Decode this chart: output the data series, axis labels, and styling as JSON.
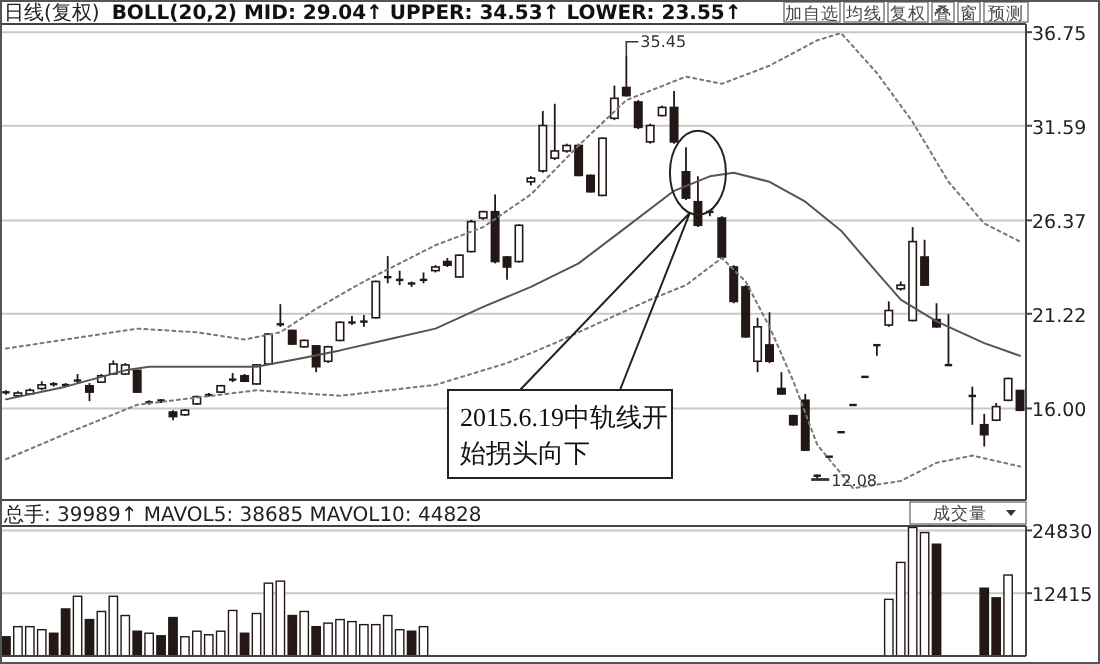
{
  "chart_data": [
    {
      "type": "candlestick",
      "title": "日线(复权)",
      "subtitle": "BOLL(20,2) MID: 29.04↑ UPPER: 34.53↑ LOWER: 23.55↑",
      "categories": [
        null,
        null,
        null,
        null,
        null,
        null,
        null,
        null,
        null,
        null,
        null,
        null,
        null,
        null,
        null,
        null,
        null,
        null,
        null,
        null,
        null,
        null,
        null,
        null,
        null,
        null,
        null,
        null,
        null,
        null,
        null,
        null,
        null,
        null,
        null,
        null,
        null,
        null,
        null,
        null,
        null,
        null,
        null,
        null,
        null,
        null,
        null,
        null,
        null,
        null,
        null,
        null,
        null,
        null,
        null,
        null,
        null,
        null,
        null,
        null,
        null,
        null,
        null,
        null,
        null,
        null,
        null,
        null,
        null,
        null,
        null,
        null,
        null,
        null,
        null,
        null,
        null,
        null,
        null,
        null,
        null,
        null,
        null,
        null,
        null,
        null
      ],
      "ohlc": [
        [
          16.85,
          17.0,
          16.75,
          16.9
        ],
        [
          16.7,
          16.95,
          16.65,
          16.85
        ],
        [
          16.8,
          17.1,
          16.75,
          17.0
        ],
        [
          17.1,
          17.5,
          17.0,
          17.3
        ],
        [
          17.35,
          17.45,
          17.2,
          17.25
        ],
        [
          17.3,
          17.4,
          17.2,
          17.3
        ],
        [
          17.45,
          17.9,
          17.35,
          17.55
        ],
        [
          17.25,
          17.4,
          16.4,
          16.9
        ],
        [
          17.45,
          17.9,
          17.4,
          17.8
        ],
        [
          17.9,
          18.65,
          17.85,
          18.45
        ],
        [
          17.9,
          18.5,
          17.85,
          18.4
        ],
        [
          18.1,
          18.15,
          16.85,
          16.9
        ],
        [
          16.3,
          16.45,
          16.2,
          16.35
        ],
        [
          16.4,
          16.5,
          16.3,
          16.45
        ],
        [
          15.8,
          15.9,
          15.35,
          15.55
        ],
        [
          15.65,
          15.95,
          15.6,
          15.9
        ],
        [
          16.25,
          16.7,
          16.2,
          16.65
        ],
        [
          16.7,
          16.85,
          16.65,
          16.75
        ],
        [
          16.9,
          17.3,
          16.85,
          17.25
        ],
        [
          17.55,
          17.95,
          17.45,
          17.6
        ],
        [
          17.8,
          17.9,
          17.45,
          17.5
        ],
        [
          17.35,
          18.45,
          17.3,
          18.4
        ],
        [
          18.45,
          20.15,
          18.4,
          20.1
        ],
        [
          20.6,
          21.75,
          20.5,
          20.65
        ],
        [
          20.3,
          20.35,
          19.5,
          19.55
        ],
        [
          19.4,
          19.8,
          19.35,
          19.75
        ],
        [
          19.45,
          19.5,
          18.0,
          18.3
        ],
        [
          18.6,
          19.45,
          18.5,
          19.4
        ],
        [
          19.75,
          20.8,
          19.7,
          20.75
        ],
        [
          20.7,
          21.1,
          20.6,
          20.75
        ],
        [
          20.75,
          21.15,
          20.5,
          20.8
        ],
        [
          21.0,
          23.05,
          20.95,
          23.0
        ],
        [
          23.2,
          24.4,
          22.9,
          23.25
        ],
        [
          23.05,
          23.6,
          22.8,
          23.1
        ],
        [
          22.9,
          23.0,
          22.7,
          22.8
        ],
        [
          23.0,
          23.5,
          22.9,
          23.1
        ],
        [
          23.6,
          23.9,
          23.5,
          23.8
        ],
        [
          24.1,
          24.3,
          23.8,
          23.9
        ],
        [
          23.25,
          24.5,
          23.2,
          24.45
        ],
        [
          24.65,
          26.4,
          24.6,
          26.3
        ],
        [
          26.5,
          26.9,
          26.4,
          26.85
        ],
        [
          26.85,
          27.8,
          24.0,
          24.1
        ],
        [
          24.35,
          24.4,
          23.1,
          23.8
        ],
        [
          24.1,
          26.15,
          24.05,
          26.1
        ],
        [
          28.5,
          28.8,
          28.3,
          28.7
        ],
        [
          29.1,
          32.4,
          29.0,
          31.6
        ],
        [
          29.8,
          32.8,
          29.7,
          30.2
        ],
        [
          30.2,
          30.6,
          30.1,
          30.5
        ],
        [
          30.5,
          30.6,
          28.8,
          28.85
        ],
        [
          28.85,
          28.9,
          27.9,
          27.95
        ],
        [
          27.75,
          30.95,
          27.7,
          30.9
        ],
        [
          32.0,
          33.8,
          31.9,
          33.1
        ],
        [
          33.7,
          35.45,
          33.2,
          33.25
        ],
        [
          32.9,
          33.0,
          31.4,
          31.5
        ],
        [
          30.7,
          31.7,
          30.6,
          31.6
        ],
        [
          32.15,
          32.7,
          32.1,
          32.6
        ],
        [
          32.6,
          33.5,
          30.6,
          30.7
        ],
        [
          29.05,
          30.4,
          27.5,
          27.6
        ],
        [
          27.4,
          28.8,
          26.0,
          26.1
        ],
        [
          26.8,
          26.9,
          26.6,
          26.85
        ],
        [
          26.5,
          26.6,
          24.3,
          24.35
        ],
        [
          23.8,
          23.9,
          21.8,
          21.9
        ],
        [
          22.7,
          22.8,
          19.9,
          19.95
        ],
        [
          18.6,
          21.0,
          18.0,
          20.5
        ],
        [
          19.5,
          21.3,
          18.5,
          18.6
        ],
        [
          17.1,
          18.0,
          16.75,
          16.8
        ],
        [
          15.6,
          15.65,
          15.05,
          15.1
        ],
        [
          16.45,
          16.8,
          13.65,
          13.7
        ],
        [
          12.3,
          12.35,
          12.08,
          12.3
        ],
        [
          13.35,
          13.35,
          13.35,
          13.35
        ],
        [
          14.7,
          14.7,
          14.7,
          14.7
        ],
        [
          16.2,
          16.2,
          16.2,
          16.2
        ],
        [
          17.75,
          17.75,
          17.75,
          17.75
        ],
        [
          19.5,
          19.5,
          18.9,
          19.5
        ],
        [
          20.6,
          21.9,
          20.5,
          21.4
        ],
        [
          22.6,
          23.0,
          22.5,
          22.8
        ],
        [
          20.85,
          26.0,
          20.8,
          25.2
        ],
        [
          24.35,
          25.3,
          22.75,
          22.8
        ],
        [
          20.9,
          21.8,
          20.45,
          20.5
        ],
        [
          18.4,
          21.2,
          18.4,
          18.4
        ],
        null,
        [
          16.7,
          17.2,
          15.1,
          16.65
        ],
        [
          15.1,
          15.7,
          13.9,
          14.55
        ],
        [
          15.35,
          16.3,
          15.3,
          16.1
        ],
        [
          16.45,
          17.7,
          16.4,
          17.65
        ],
        [
          16.99,
          17.0,
          15.85,
          15.9
        ]
      ],
      "series": [
        {
          "type": "line",
          "color": "#555555",
          "line_style": "solid",
          "values": [
            16.5,
            null,
            null,
            null,
            null,
            17.2,
            null,
            null,
            null,
            null,
            18.1,
            null,
            18.3,
            null,
            null,
            null,
            18.3,
            null,
            null,
            null,
            null,
            18.3,
            null,
            null,
            null,
            18.8,
            null,
            null,
            19.2,
            null,
            null,
            null,
            19.8,
            null,
            null,
            null,
            20.4,
            null,
            null,
            null,
            21.6,
            null,
            null,
            null,
            22.7,
            null,
            null,
            null,
            24.0,
            null,
            null,
            null,
            26.0,
            null,
            null,
            null,
            28.0,
            null,
            null,
            28.8,
            null,
            29.0,
            null,
            null,
            28.5,
            null,
            null,
            27.4,
            null,
            null,
            25.8,
            null,
            null,
            23.5,
            null,
            22.0,
            null,
            null,
            20.8,
            null,
            null,
            null,
            19.6,
            null,
            null,
            18.9
          ]
        },
        {
          "type": "line",
          "color": "#777777",
          "line_style": "dotted",
          "values": [
            19.3,
            null,
            null,
            null,
            null,
            null,
            19.9,
            null,
            null,
            null,
            null,
            20.4,
            null,
            null,
            null,
            null,
            20.2,
            null,
            null,
            null,
            19.8,
            null,
            null,
            20.2,
            null,
            null,
            21.5,
            null,
            null,
            null,
            23.0,
            null,
            null,
            null,
            null,
            null,
            25.0,
            null,
            null,
            null,
            26.0,
            null,
            null,
            null,
            27.8,
            null,
            null,
            null,
            30.5,
            null,
            null,
            null,
            33.0,
            null,
            null,
            null,
            null,
            34.3,
            null,
            null,
            33.9,
            null,
            null,
            null,
            34.9,
            null,
            null,
            null,
            36.3,
            null,
            36.7,
            null,
            null,
            34.5,
            null,
            null,
            31.8,
            null,
            null,
            28.5,
            null,
            null,
            26.2,
            null,
            null,
            25.2
          ]
        },
        {
          "type": "line",
          "color": "#777777",
          "line_style": "dotted",
          "values": [
            13.2,
            null,
            null,
            null,
            null,
            14.6,
            null,
            null,
            null,
            null,
            null,
            16.2,
            null,
            null,
            null,
            null,
            16.6,
            null,
            null,
            null,
            null,
            17.0,
            null,
            null,
            null,
            null,
            null,
            null,
            16.7,
            null,
            null,
            null,
            null,
            null,
            null,
            null,
            17.3,
            null,
            null,
            null,
            null,
            null,
            18.5,
            null,
            null,
            null,
            19.6,
            null,
            null,
            null,
            20.8,
            null,
            null,
            null,
            22.0,
            null,
            null,
            22.8,
            null,
            null,
            24.3,
            null,
            23.0,
            null,
            20.5,
            null,
            17.5,
            null,
            14.0,
            null,
            null,
            11.6,
            null,
            null,
            null,
            12.0,
            null,
            null,
            13.0,
            null,
            null,
            13.4,
            null,
            null,
            null,
            12.8
          ]
        }
      ],
      "ylim": [
        10.95,
        37.2
      ],
      "yticks": [
        {
          "value": 16,
          "label": "16.00"
        },
        21.22,
        26.37,
        31.59,
        36.75
      ],
      "grid": "y",
      "annotations": [
        "加自选",
        "均线",
        "复权",
        "叠",
        "窗",
        "预测",
        "2015.6.19中轨线开始拐头向下",
        "35.45",
        "12.08"
      ]
    },
    {
      "type": "bar",
      "title": "总手: 39989↑ MAVOL5: 38685  MAVOL10: 44828",
      "categories": [
        null,
        null,
        null,
        null,
        null,
        null,
        null,
        null,
        null,
        null,
        null,
        null,
        null,
        null,
        null,
        null,
        null,
        null,
        null,
        null,
        null,
        null,
        null,
        null,
        null,
        null,
        null,
        null,
        null,
        null,
        null,
        null,
        null,
        null,
        null,
        null,
        null,
        null,
        null,
        null,
        null,
        null,
        null,
        null,
        null,
        null,
        null,
        null,
        null,
        null,
        null,
        null,
        null,
        null,
        null,
        null,
        null,
        null,
        null,
        null,
        null,
        null,
        null,
        null,
        null,
        null,
        null,
        null,
        null,
        null,
        null,
        null,
        null,
        null,
        null,
        null,
        null,
        null,
        null,
        null,
        null,
        null,
        null,
        null,
        null,
        null
      ],
      "values": [
        3800,
        5800,
        5800,
        5200,
        4500,
        9300,
        11800,
        7200,
        8800,
        11800,
        8000,
        4900,
        4500,
        4000,
        7600,
        3800,
        4900,
        4200,
        4900,
        9000,
        4500,
        8400,
        14400,
        14800,
        8000,
        8800,
        5800,
        6500,
        7200,
        6800,
        6200,
        6200,
        8000,
        5200,
        4900,
        5800,
        null,
        null,
        null,
        null,
        null,
        null,
        null,
        null,
        null,
        null,
        null,
        null,
        null,
        null,
        null,
        null,
        null,
        null,
        null,
        null,
        null,
        null,
        null,
        null,
        null,
        null,
        null,
        null,
        null,
        null,
        null,
        null,
        null,
        null,
        null,
        null,
        null,
        null,
        11200,
        18500,
        25400,
        24400,
        22100,
        null,
        null,
        null,
        13400,
        11500,
        16000,
        null
      ],
      "colors": [
        "#231815",
        "#ffffff",
        "#ffffff",
        "#ffffff",
        "#231815",
        "#231815",
        "#ffffff",
        "#231815",
        "#ffffff",
        "#ffffff",
        "#ffffff",
        "#231815",
        "#ffffff",
        "#231815",
        "#231815",
        "#ffffff",
        "#ffffff",
        "#ffffff",
        "#ffffff",
        "#ffffff",
        "#231815",
        "#ffffff",
        "#ffffff",
        "#ffffff",
        "#231815",
        "#ffffff",
        "#231815",
        "#ffffff",
        "#ffffff",
        "#ffffff",
        "#ffffff",
        "#ffffff",
        "#ffffff",
        "#ffffff",
        "#231815",
        "#ffffff",
        null,
        null,
        null,
        null,
        null,
        null,
        null,
        null,
        null,
        null,
        null,
        null,
        null,
        null,
        null,
        null,
        null,
        null,
        null,
        null,
        null,
        null,
        null,
        null,
        null,
        null,
        null,
        null,
        null,
        null,
        null,
        null,
        null,
        null,
        null,
        null,
        null,
        null,
        "#ffffff",
        "#ffffff",
        "#ffffff",
        "#ffffff",
        "#231815",
        null,
        null,
        null,
        "#231815",
        "#231815",
        "#ffffff",
        null
      ],
      "ylim": [
        0,
        25700
      ],
      "yticks": [
        12415,
        24830
      ],
      "grid": "y",
      "annotations": [
        "成交量"
      ]
    }
  ]
}
